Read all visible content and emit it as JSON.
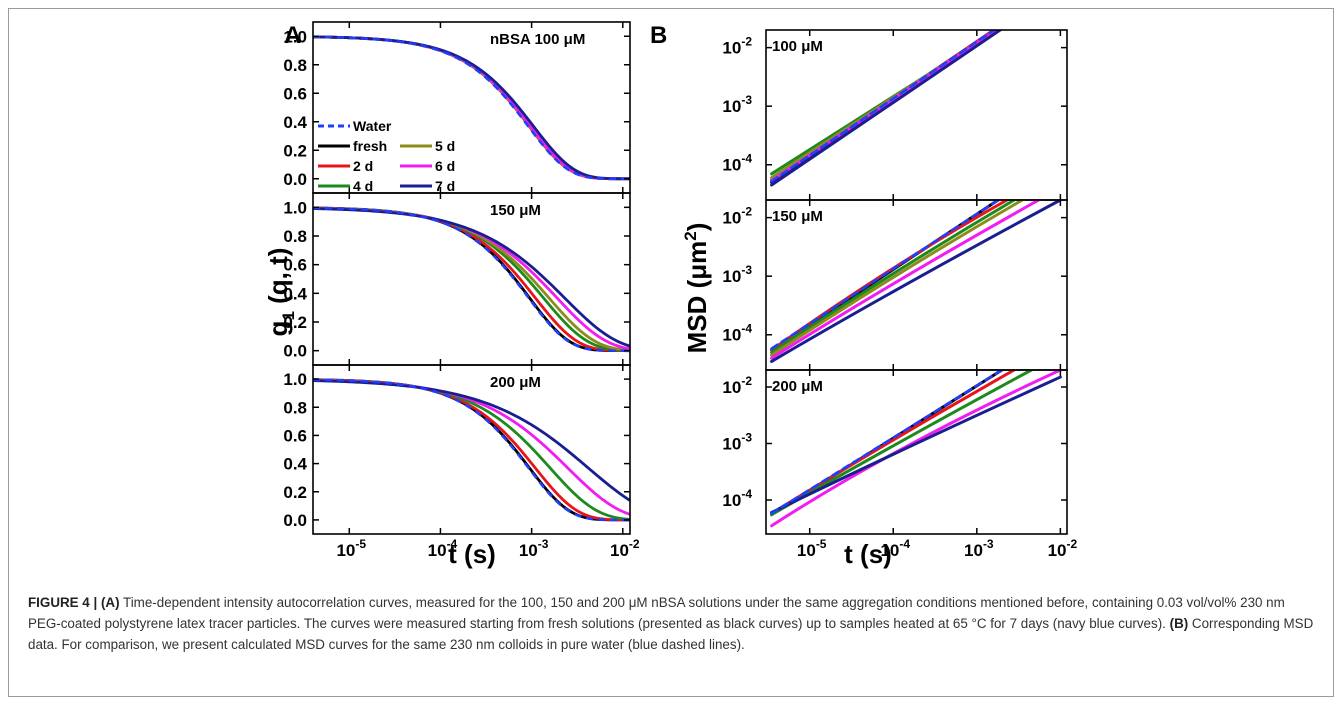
{
  "figure_label_a": "A",
  "figure_label_b": "B",
  "caption": {
    "prefix": "FIGURE 4 | ",
    "a_label": "(A)",
    "a_text": " Time-dependent intensity autocorrelation curves, measured for the 100, 150 and 200 μM nBSA solutions under the same aggregation conditions mentioned before, containing 0.03 vol/vol% 230 nm PEG-coated polystyrene latex tracer particles. The curves were measured starting from fresh solutions (presented as black curves) up to samples heated at 65 °C for 7 days (navy blue curves). ",
    "b_label": "(B)",
    "b_text": " Corresponding MSD data. For comparison, we present calculated MSD curves for the same 230 nm colloids in pure water (blue dashed lines)."
  },
  "colors": {
    "Water": "#1f3fff",
    "fresh": "#000000",
    "2 d": "#e8141b",
    "4 d": "#1d8a1d",
    "5 d": "#8c8c1a",
    "6 d": "#f21cf2",
    "7 d": "#1a1f8f"
  },
  "chart_data": [
    {
      "type": "line",
      "panel": "A",
      "xlabel": "t (s)",
      "ylabel": "g1 (q, t)",
      "x_scale": "log",
      "xlim": [
        4e-06,
        0.012
      ],
      "x_ticks": [
        {
          "value": 1e-05,
          "base": "10",
          "exp": "-5"
        },
        {
          "value": 0.0001,
          "base": "10",
          "exp": "-4"
        },
        {
          "value": 0.001,
          "base": "10",
          "exp": "-3"
        },
        {
          "value": 0.01,
          "base": "10",
          "exp": "-2"
        }
      ],
      "y_ticks": [
        "0.0",
        "0.2",
        "0.4",
        "0.6",
        "0.8",
        "1.0"
      ],
      "legend": {
        "position": "left",
        "entries": [
          {
            "name": "Water",
            "style": "dashed"
          },
          {
            "name": "fresh"
          },
          {
            "name": "5 d"
          },
          {
            "name": "2 d"
          },
          {
            "name": "6 d"
          },
          {
            "name": "4 d"
          },
          {
            "name": "7 d"
          }
        ]
      },
      "subplots": [
        {
          "label": "nBSA 100 μM",
          "ylim": [
            -0.1,
            1.1
          ],
          "series": [
            {
              "name": "fresh",
              "tau": 0.00095,
              "beta": 1.0
            },
            {
              "name": "2 d",
              "tau": 0.00094,
              "beta": 1.0
            },
            {
              "name": "4 d",
              "tau": 0.00096,
              "beta": 1.0
            },
            {
              "name": "5 d",
              "tau": 0.00095,
              "beta": 1.0
            },
            {
              "name": "6 d",
              "tau": 0.00097,
              "beta": 1.0
            },
            {
              "name": "7 d",
              "tau": 0.00105,
              "beta": 0.98
            },
            {
              "name": "Water",
              "tau": 0.00092,
              "beta": 1.0
            }
          ]
        },
        {
          "label": "150 μM",
          "ylim": [
            -0.1,
            1.1
          ],
          "series": [
            {
              "name": "fresh",
              "tau": 0.00095,
              "beta": 1.0
            },
            {
              "name": "2 d",
              "tau": 0.0011,
              "beta": 0.95
            },
            {
              "name": "4 d",
              "tau": 0.00135,
              "beta": 0.9
            },
            {
              "name": "5 d",
              "tau": 0.00155,
              "beta": 0.86
            },
            {
              "name": "6 d",
              "tau": 0.0019,
              "beta": 0.8
            },
            {
              "name": "7 d",
              "tau": 0.0023,
              "beta": 0.75
            },
            {
              "name": "Water",
              "tau": 0.00093,
              "beta": 1.0
            }
          ]
        },
        {
          "label": "200 μM",
          "ylim": [
            -0.1,
            1.1
          ],
          "series": [
            {
              "name": "fresh",
              "tau": 0.00095,
              "beta": 1.0
            },
            {
              "name": "2 d",
              "tau": 0.0011,
              "beta": 0.95
            },
            {
              "name": "4 d",
              "tau": 0.0016,
              "beta": 0.85
            },
            {
              "name": "6 d",
              "tau": 0.0025,
              "beta": 0.75
            },
            {
              "name": "7 d",
              "tau": 0.0042,
              "beta": 0.65
            },
            {
              "name": "Water",
              "tau": 0.00093,
              "beta": 1.0
            }
          ]
        }
      ]
    },
    {
      "type": "line",
      "panel": "B",
      "xlabel": "t (s)",
      "ylabel": "MSD (μm²)",
      "x_scale": "log",
      "y_scale": "log",
      "xlim": [
        3e-06,
        0.012
      ],
      "x_ticks": [
        {
          "value": 1e-05,
          "base": "10",
          "exp": "-5"
        },
        {
          "value": 0.0001,
          "base": "10",
          "exp": "-4"
        },
        {
          "value": 0.001,
          "base": "10",
          "exp": "-3"
        },
        {
          "value": 0.01,
          "base": "10",
          "exp": "-2"
        }
      ],
      "y_ticks": [
        {
          "value": 0.0001,
          "base": "10",
          "exp": "-4"
        },
        {
          "value": 0.001,
          "base": "10",
          "exp": "-3"
        },
        {
          "value": 0.01,
          "base": "10",
          "exp": "-2"
        }
      ],
      "subplots": [
        {
          "label": "100 μM",
          "ylim": [
            2.5e-05,
            0.02
          ],
          "series": [
            {
              "name": "fresh",
              "points": [
                [
                  3.5e-06,
                  5e-05
                ],
                [
                  0.0016,
                  0.02
                ]
              ]
            },
            {
              "name": "2 d",
              "points": [
                [
                  3.5e-06,
                  5.5e-05
                ],
                [
                  0.0016,
                  0.02
                ]
              ]
            },
            {
              "name": "4 d",
              "points": [
                [
                  3.5e-06,
                  7e-05
                ],
                [
                  0.0018,
                  0.02
                ]
              ]
            },
            {
              "name": "5 d",
              "points": [
                [
                  3.5e-06,
                  6e-05
                ],
                [
                  0.0017,
                  0.02
                ]
              ]
            },
            {
              "name": "6 d",
              "points": [
                [
                  3.5e-06,
                  5.3e-05
                ],
                [
                  0.0017,
                  0.02
                ]
              ]
            },
            {
              "name": "7 d",
              "points": [
                [
                  3.5e-06,
                  4.5e-05
                ],
                [
                  0.0019,
                  0.02
                ]
              ]
            },
            {
              "name": "Water",
              "style": "dashed",
              "points": [
                [
                  3.5e-06,
                  5.2e-05
                ],
                [
                  0.0016,
                  0.02
                ]
              ]
            }
          ]
        },
        {
          "label": "150 μM",
          "ylim": [
            2.5e-05,
            0.02
          ],
          "series": [
            {
              "name": "fresh",
              "points": [
                [
                  3.5e-06,
                  5.5e-05
                ],
                [
                  0.0018,
                  0.02
                ]
              ]
            },
            {
              "name": "2 d",
              "points": [
                [
                  3.5e-06,
                  5.5e-05
                ],
                [
                  0.0001,
                  0.0013
                ],
                [
                  0.0023,
                  0.02
                ]
              ]
            },
            {
              "name": "4 d",
              "points": [
                [
                  3.5e-06,
                  5e-05
                ],
                [
                  0.0001,
                  0.0011
                ],
                [
                  0.0028,
                  0.02
                ]
              ]
            },
            {
              "name": "5 d",
              "points": [
                [
                  3.5e-06,
                  4.5e-05
                ],
                [
                  0.0001,
                  0.001
                ],
                [
                  0.0035,
                  0.02
                ]
              ]
            },
            {
              "name": "6 d",
              "points": [
                [
                  3.5e-06,
                  4e-05
                ],
                [
                  0.0001,
                  0.00085
                ],
                [
                  0.0055,
                  0.02
                ]
              ]
            },
            {
              "name": "7 d",
              "points": [
                [
                  3.5e-06,
                  3.5e-05
                ],
                [
                  0.0001,
                  0.0007
                ],
                [
                  0.01,
                  0.02
                ]
              ]
            },
            {
              "name": "Water",
              "style": "dashed",
              "points": [
                [
                  3.5e-06,
                  5.8e-05
                ],
                [
                  0.0018,
                  0.02
                ]
              ]
            }
          ]
        },
        {
          "label": "200 μM",
          "ylim": [
            2.5e-05,
            0.02
          ],
          "series": [
            {
              "name": "fresh",
              "points": [
                [
                  3.5e-06,
                  5.5e-05
                ],
                [
                  0.002,
                  0.02
                ]
              ]
            },
            {
              "name": "2 d",
              "points": [
                [
                  3.5e-06,
                  5.8e-05
                ],
                [
                  0.0001,
                  0.00115
                ],
                [
                  0.0028,
                  0.02
                ]
              ]
            },
            {
              "name": "4 d",
              "points": [
                [
                  3.5e-06,
                  5.5e-05
                ],
                [
                  0.0001,
                  0.001
                ],
                [
                  0.0045,
                  0.02
                ]
              ]
            },
            {
              "name": "6 d",
              "points": [
                [
                  3.5e-06,
                  3.5e-05
                ],
                [
                  0.0001,
                  0.00085
                ],
                [
                  0.01,
                  0.02
                ]
              ]
            },
            {
              "name": "7 d",
              "points": [
                [
                  3.5e-06,
                  6e-05
                ],
                [
                  0.0001,
                  0.0008
                ],
                [
                  0.01,
                  0.015
                ]
              ]
            },
            {
              "name": "Water",
              "style": "dashed",
              "points": [
                [
                  3.5e-06,
                  5.8e-05
                ],
                [
                  0.002,
                  0.02
                ]
              ]
            }
          ]
        }
      ]
    }
  ]
}
